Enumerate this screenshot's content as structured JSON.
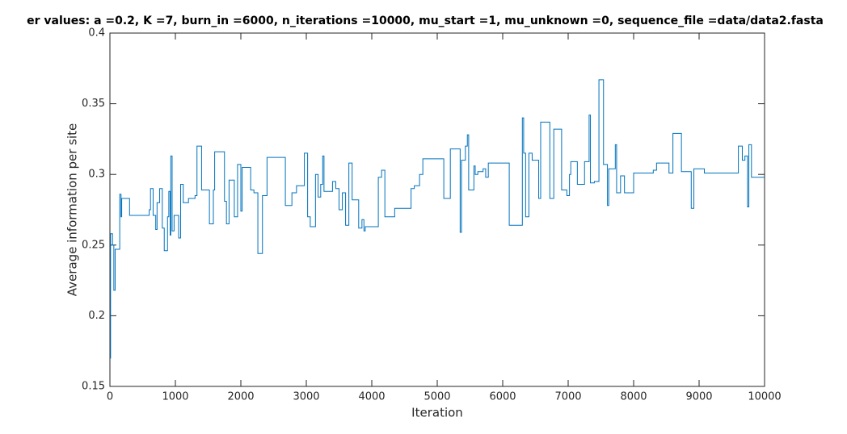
{
  "chart_data": {
    "type": "line",
    "step": true,
    "title": "er values: a =0.2, K =7, burn_in =6000, n_iterations =10000, mu_start =1, mu_unknown =0, sequence_file =data/data2.fasta",
    "x_label": "Iteration",
    "y_label": "Average information per site",
    "xlim": [
      0,
      10000
    ],
    "xticks": [
      0,
      1000,
      2000,
      3000,
      4000,
      5000,
      6000,
      7000,
      8000,
      9000,
      10000
    ],
    "ylim": [
      0.15,
      0.4
    ],
    "yticks": [
      0.15,
      0.2,
      0.25,
      0.3,
      0.35,
      0.4
    ],
    "grid": false,
    "series": [
      {
        "color": "#0072bd",
        "x": [
          0,
          10,
          40,
          60,
          80,
          120,
          150,
          170,
          180,
          250,
          300,
          600,
          620,
          660,
          700,
          720,
          760,
          800,
          830,
          880,
          900,
          920,
          930,
          950,
          980,
          1050,
          1080,
          1120,
          1200,
          1250,
          1300,
          1330,
          1400,
          1520,
          1580,
          1600,
          1750,
          1780,
          1820,
          1900,
          1950,
          2000,
          2020,
          2150,
          2200,
          2260,
          2330,
          2400,
          2680,
          2780,
          2850,
          2970,
          3020,
          3060,
          3140,
          3180,
          3220,
          3250,
          3270,
          3400,
          3450,
          3500,
          3550,
          3600,
          3650,
          3700,
          3800,
          3850,
          3880,
          3900,
          4100,
          4150,
          4200,
          4350,
          4600,
          4650,
          4730,
          4780,
          5100,
          5200,
          5350,
          5370,
          5430,
          5460,
          5480,
          5560,
          5580,
          5620,
          5700,
          5740,
          5780,
          6100,
          6300,
          6320,
          6350,
          6400,
          6450,
          6550,
          6580,
          6720,
          6780,
          6900,
          6980,
          7020,
          7040,
          7140,
          7250,
          7320,
          7340,
          7400,
          7470,
          7540,
          7600,
          7620,
          7720,
          7740,
          7800,
          7860,
          8000,
          8300,
          8350,
          8540,
          8600,
          8730,
          8880,
          8920,
          9080,
          9600,
          9660,
          9700,
          9740,
          9760,
          9800,
          10000
        ],
        "values": [
          0.17,
          0.258,
          0.25,
          0.218,
          0.247,
          0.247,
          0.286,
          0.27,
          0.283,
          0.283,
          0.271,
          0.275,
          0.29,
          0.271,
          0.261,
          0.28,
          0.29,
          0.262,
          0.246,
          0.27,
          0.288,
          0.257,
          0.313,
          0.26,
          0.271,
          0.255,
          0.293,
          0.28,
          0.283,
          0.283,
          0.285,
          0.32,
          0.289,
          0.265,
          0.289,
          0.316,
          0.281,
          0.265,
          0.296,
          0.27,
          0.307,
          0.274,
          0.305,
          0.289,
          0.287,
          0.244,
          0.285,
          0.312,
          0.278,
          0.287,
          0.292,
          0.315,
          0.27,
          0.263,
          0.3,
          0.284,
          0.293,
          0.313,
          0.288,
          0.295,
          0.29,
          0.275,
          0.287,
          0.264,
          0.308,
          0.282,
          0.262,
          0.268,
          0.26,
          0.263,
          0.298,
          0.303,
          0.27,
          0.276,
          0.29,
          0.292,
          0.3,
          0.311,
          0.283,
          0.318,
          0.259,
          0.31,
          0.32,
          0.328,
          0.289,
          0.306,
          0.3,
          0.302,
          0.304,
          0.298,
          0.308,
          0.264,
          0.34,
          0.315,
          0.27,
          0.315,
          0.31,
          0.283,
          0.337,
          0.283,
          0.332,
          0.289,
          0.285,
          0.3,
          0.309,
          0.293,
          0.309,
          0.342,
          0.294,
          0.295,
          0.367,
          0.307,
          0.278,
          0.304,
          0.321,
          0.287,
          0.299,
          0.287,
          0.301,
          0.303,
          0.308,
          0.301,
          0.329,
          0.302,
          0.276,
          0.304,
          0.301,
          0.32,
          0.31,
          0.313,
          0.277,
          0.321,
          0.298,
          0.298
        ]
      }
    ]
  }
}
